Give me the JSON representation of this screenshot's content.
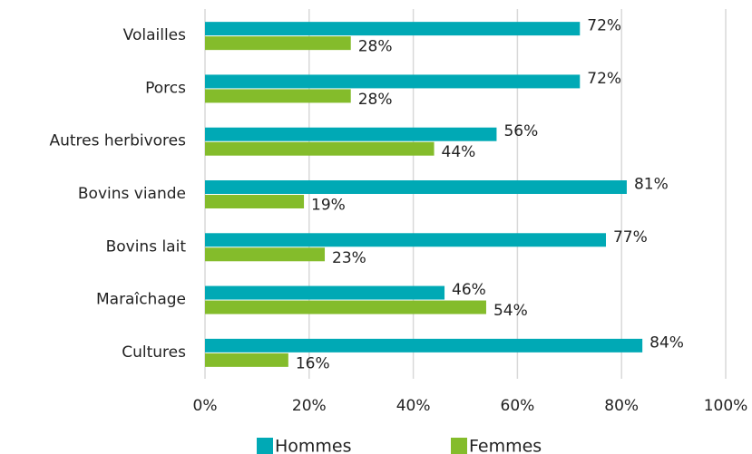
{
  "chart_data": {
    "type": "bar",
    "orientation": "horizontal",
    "categories": [
      "Volailles",
      "Porcs",
      "Autres herbivores",
      "Bovins viande",
      "Bovins lait",
      "Maraîchage",
      "Cultures"
    ],
    "series": [
      {
        "name": "Hommes",
        "color": "#00a9b5",
        "values": [
          72,
          72,
          56,
          81,
          77,
          46,
          84
        ],
        "value_labels": [
          "72%",
          "72%",
          "56%",
          "81%",
          "77%",
          "46%",
          "84%"
        ]
      },
      {
        "name": "Femmes",
        "color": "#84bc2b",
        "values": [
          28,
          28,
          44,
          19,
          23,
          54,
          16
        ],
        "value_labels": [
          "28%",
          "28%",
          "44%",
          "19%",
          "23%",
          "54%",
          "16%"
        ]
      }
    ],
    "xlim": [
      0,
      100
    ],
    "xticks": [
      {
        "value": 0,
        "label": "0%"
      },
      {
        "value": 20,
        "label": "20%"
      },
      {
        "value": 40,
        "label": "40%"
      },
      {
        "value": 60,
        "label": "60%"
      },
      {
        "value": 80,
        "label": "80%"
      },
      {
        "value": 100,
        "label": "100%"
      }
    ],
    "grid": true,
    "legend": "bottom"
  }
}
